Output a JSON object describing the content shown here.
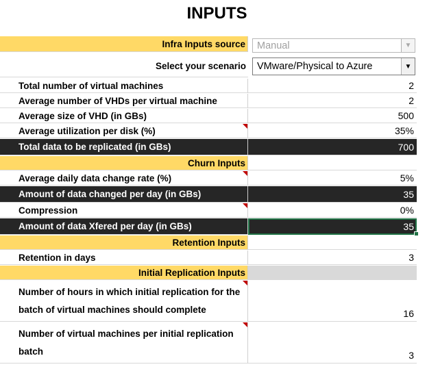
{
  "title": "INPUTS",
  "colors": {
    "section": "#ffd966",
    "dark": "#262626",
    "gray": "#d9d9d9",
    "marker": "#c00000"
  },
  "infra_source": {
    "label": "Infra Inputs source",
    "value": "Manual"
  },
  "scenario": {
    "label": "Select your scenario",
    "value": "VMware/Physical to Azure"
  },
  "rows": {
    "total_vms": {
      "label": "Total number of virtual machines",
      "value": "2"
    },
    "avg_vhds": {
      "label": "Average number of VHDs per virtual machine",
      "value": "2"
    },
    "avg_vhd_size": {
      "label": "Average size of VHD (in GBs)",
      "value": "500"
    },
    "avg_util": {
      "label": "Average utilization per disk (%)",
      "value": "35%"
    },
    "total_data": {
      "label": "Total data to be replicated (in GBs)",
      "value": "700"
    },
    "churn_section": {
      "label": "Churn Inputs"
    },
    "daily_change": {
      "label": "Average daily data change rate (%)",
      "value": "5%"
    },
    "data_changed": {
      "label": "Amount of data changed per day (in GBs)",
      "value": "35"
    },
    "compression": {
      "label": "Compression",
      "value": "0%"
    },
    "data_xfered": {
      "label": "Amount of data Xfered per day (in GBs)",
      "value": "35"
    },
    "retention_section": {
      "label": "Retention Inputs"
    },
    "retention_days": {
      "label": "Retention in days",
      "value": "3"
    },
    "initial_section": {
      "label": "Initial Replication Inputs"
    },
    "hours_initial": {
      "label": "Number of hours in which initial replication for the batch of virtual machines should complete",
      "value": "16"
    },
    "vms_per_batch": {
      "label": "Number of virtual machines per initial replication batch",
      "value": "3"
    }
  }
}
